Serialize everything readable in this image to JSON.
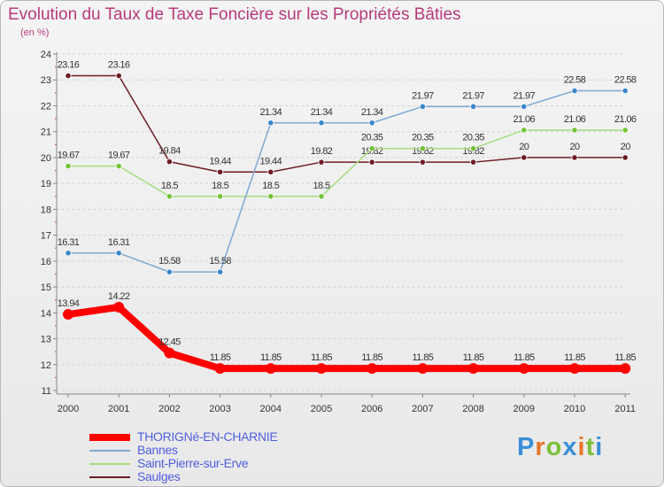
{
  "title": "Evolution du Taux de Taxe Foncière sur les Propriétés Bâties",
  "subtitle": "(en %)",
  "logo": {
    "text": "Proxiti",
    "letters": [
      {
        "ch": "P",
        "color": "#3a8fd8"
      },
      {
        "ch": "r",
        "color": "#e8732a"
      },
      {
        "ch": "o",
        "color": "#7bbf3a"
      },
      {
        "ch": "x",
        "color": "#3a8fd8"
      },
      {
        "ch": "i",
        "color": "#e8732a"
      },
      {
        "ch": "t",
        "color": "#7bbf3a"
      },
      {
        "ch": "i",
        "color": "#3a8fd8"
      }
    ]
  },
  "chart_data": {
    "type": "line",
    "title": "Evolution du Taux de Taxe Foncière sur les Propriétés Bâties",
    "ylabel": "(en %)",
    "xlabel": "",
    "categories": [
      "2000",
      "2001",
      "2002",
      "2003",
      "2004",
      "2005",
      "2006",
      "2007",
      "2008",
      "2009",
      "2010",
      "2011"
    ],
    "ylim": [
      11,
      24
    ],
    "yticks": [
      "11",
      "12",
      "13",
      "14",
      "15",
      "16",
      "17",
      "18",
      "19",
      "20",
      "21",
      "22",
      "23",
      "24"
    ],
    "grid": "horizontal dashed",
    "legend_position": "bottom-left",
    "series": [
      {
        "name": "Saulges",
        "color": "#6e1c24",
        "marker": "#6e1c24",
        "width": "thin",
        "values": [
          23.16,
          23.16,
          19.84,
          19.44,
          19.44,
          19.82,
          19.82,
          19.82,
          19.82,
          20,
          20,
          20
        ],
        "labels": [
          "23.16",
          "23.16",
          "19.84",
          "19.44",
          "19.44",
          "19.82",
          "19.82",
          "19.82",
          "19.82",
          "20",
          "20",
          "20"
        ]
      },
      {
        "name": "Saint-Pierre-sur-Erve",
        "color": "#a6dd7e",
        "marker": "#73c339",
        "width": "thin",
        "values": [
          19.67,
          19.67,
          18.5,
          18.5,
          18.5,
          18.5,
          20.35,
          20.35,
          20.35,
          21.06,
          21.06,
          21.06
        ],
        "labels": [
          "19.67",
          "19.67",
          "18.5",
          "18.5",
          "18.5",
          "18.5",
          "20.35",
          "20.35",
          "20.35",
          "21.06",
          "21.06",
          "21.06"
        ]
      },
      {
        "name": "Bannes",
        "color": "#7fa9d1",
        "marker": "#3a86c8",
        "width": "thin",
        "values": [
          16.31,
          16.31,
          15.58,
          15.58,
          21.34,
          21.34,
          21.34,
          21.97,
          21.97,
          21.97,
          22.58,
          22.58
        ],
        "labels": [
          "16.31",
          "16.31",
          "15.58",
          "15.58",
          "21.34",
          "21.34",
          "21.34",
          "21.97",
          "21.97",
          "21.97",
          "22.58",
          "22.58"
        ]
      },
      {
        "name": "THORIGNé-EN-CHARNIE",
        "color": "#ff0000",
        "marker": "#ff0000",
        "width": "thick",
        "values": [
          13.94,
          14.22,
          12.45,
          11.85,
          11.85,
          11.85,
          11.85,
          11.85,
          11.85,
          11.85,
          11.85,
          11.85
        ],
        "labels": [
          "13.94",
          "14.22",
          "12.45",
          "11.85",
          "11.85",
          "11.85",
          "11.85",
          "11.85",
          "11.85",
          "11.85",
          "11.85",
          "11.85"
        ]
      }
    ],
    "legend_order": [
      "THORIGNé-EN-CHARNIE",
      "Bannes",
      "Saint-Pierre-sur-Erve",
      "Saulges"
    ]
  }
}
